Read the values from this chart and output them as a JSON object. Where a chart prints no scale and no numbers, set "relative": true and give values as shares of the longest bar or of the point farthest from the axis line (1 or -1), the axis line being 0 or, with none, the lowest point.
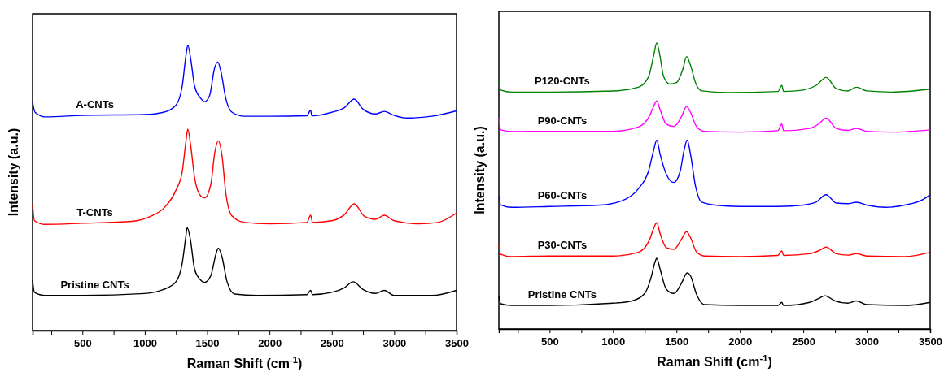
{
  "chart_data": [
    {
      "type": "line",
      "relative": true,
      "xlabel": "Raman Shift (cm$^{-1}$)",
      "ylabel": "Intensity (a.u.)",
      "tick_labels": "x",
      "xlim": [
        100,
        3500
      ],
      "xticks": [
        {
          "value": 250,
          "label": null
        },
        500,
        {
          "value": 750,
          "label": null
        },
        1000,
        {
          "value": 1250,
          "label": null
        },
        1500,
        {
          "value": 1750,
          "label": null
        },
        2000,
        {
          "value": 2250,
          "label": null
        },
        2500,
        {
          "value": 2750,
          "label": null
        },
        3000,
        {
          "value": 3250,
          "label": null
        },
        3500
      ],
      "series": [
        {
          "name": "A-CNTs",
          "color": "#0000ff",
          "x": [
            100,
            120,
            200,
            500,
            1000,
            1150,
            1250,
            1300,
            1330,
            1345,
            1370,
            1400,
            1450,
            1480,
            1520,
            1560,
            1585,
            1610,
            1650,
            1700,
            1800,
            2000,
            2300,
            2330,
            2340,
            2500,
            2600,
            2680,
            2750,
            2850,
            2920,
            3000,
            3100,
            3300,
            3500
          ],
          "values": [
            0.8,
            0.765,
            0.749,
            0.754,
            0.757,
            0.765,
            0.79,
            0.856,
            0.963,
            1.0,
            0.947,
            0.856,
            0.813,
            0.802,
            0.824,
            0.92,
            0.941,
            0.909,
            0.813,
            0.765,
            0.751,
            0.751,
            0.753,
            0.772,
            0.753,
            0.765,
            0.781,
            0.811,
            0.776,
            0.759,
            0.768,
            0.754,
            0.745,
            0.751,
            0.77
          ]
        },
        {
          "name": "T-CNTs",
          "color": "#ff0000",
          "x": [
            100,
            115,
            200,
            500,
            900,
            1050,
            1150,
            1250,
            1300,
            1330,
            1345,
            1370,
            1400,
            1450,
            1480,
            1530,
            1560,
            1590,
            1620,
            1650,
            1700,
            1800,
            2000,
            2300,
            2330,
            2345,
            2500,
            2600,
            2680,
            2760,
            2850,
            2920,
            3000,
            3200,
            3350,
            3500
          ],
          "values": [
            0.444,
            0.385,
            0.372,
            0.376,
            0.383,
            0.401,
            0.428,
            0.492,
            0.556,
            0.663,
            0.706,
            0.642,
            0.535,
            0.471,
            0.465,
            0.513,
            0.62,
            0.665,
            0.61,
            0.481,
            0.401,
            0.379,
            0.374,
            0.379,
            0.404,
            0.379,
            0.385,
            0.406,
            0.444,
            0.401,
            0.39,
            0.404,
            0.385,
            0.374,
            0.379,
            0.412
          ]
        },
        {
          "name": "Pristine CNTs",
          "color": "#000000",
          "x": [
            100,
            115,
            200,
            500,
            1000,
            1150,
            1250,
            1300,
            1330,
            1340,
            1365,
            1400,
            1450,
            1480,
            1530,
            1570,
            1590,
            1620,
            1660,
            1720,
            1900,
            2300,
            2330,
            2345,
            2500,
            2600,
            2670,
            2750,
            2850,
            2920,
            3000,
            3300,
            3500
          ],
          "values": [
            0.176,
            0.134,
            0.123,
            0.123,
            0.13,
            0.144,
            0.171,
            0.235,
            0.332,
            0.361,
            0.321,
            0.214,
            0.176,
            0.169,
            0.193,
            0.267,
            0.289,
            0.257,
            0.171,
            0.128,
            0.123,
            0.126,
            0.141,
            0.126,
            0.134,
            0.15,
            0.171,
            0.144,
            0.13,
            0.141,
            0.123,
            0.123,
            0.141
          ]
        }
      ]
    },
    {
      "type": "line",
      "relative": true,
      "xlabel": "Raman Shift (cm$^{-1}$)",
      "ylabel": "Intensity (a.u.)",
      "tick_labels": "x",
      "xlim": [
        100,
        3500
      ],
      "xticks": [
        {
          "value": 250,
          "label": null
        },
        500,
        {
          "value": 750,
          "label": null
        },
        1000,
        {
          "value": 1250,
          "label": null
        },
        1500,
        {
          "value": 1750,
          "label": null
        },
        2000,
        {
          "value": 2250,
          "label": null
        },
        2500,
        {
          "value": 2750,
          "label": null
        },
        3000,
        {
          "value": 3250,
          "label": null
        },
        3500
      ],
      "series": [
        {
          "name": "P120-CNTs",
          "color": "#008000",
          "x": [
            100,
            115,
            200,
            500,
            1000,
            1200,
            1280,
            1320,
            1345,
            1370,
            1400,
            1450,
            1500,
            1550,
            1580,
            1610,
            1650,
            1700,
            1900,
            2300,
            2330,
            2345,
            2500,
            2600,
            2680,
            2760,
            2850,
            2920,
            3000,
            3200,
            3500
          ],
          "values": [
            0.871,
            0.835,
            0.828,
            0.828,
            0.832,
            0.845,
            0.881,
            0.954,
            1.0,
            0.954,
            0.881,
            0.856,
            0.861,
            0.907,
            0.952,
            0.923,
            0.861,
            0.832,
            0.826,
            0.83,
            0.851,
            0.83,
            0.835,
            0.851,
            0.879,
            0.84,
            0.832,
            0.845,
            0.832,
            0.828,
            0.838
          ]
        },
        {
          "name": "P90-CNTs",
          "color": "#ff00ff",
          "x": [
            100,
            115,
            200,
            500,
            1000,
            1200,
            1290,
            1320,
            1345,
            1370,
            1420,
            1480,
            1540,
            1580,
            1610,
            1660,
            1720,
            2000,
            2300,
            2330,
            2345,
            2550,
            2620,
            2680,
            2760,
            2850,
            2920,
            3000,
            3200,
            3500
          ],
          "values": [
            0.739,
            0.696,
            0.69,
            0.691,
            0.691,
            0.706,
            0.747,
            0.778,
            0.797,
            0.768,
            0.716,
            0.708,
            0.742,
            0.778,
            0.758,
            0.706,
            0.691,
            0.688,
            0.693,
            0.716,
            0.693,
            0.701,
            0.716,
            0.737,
            0.701,
            0.694,
            0.701,
            0.691,
            0.688,
            0.696
          ]
        },
        {
          "name": "P60-CNTs",
          "color": "#0000ff",
          "x": [
            100,
            115,
            200,
            500,
            900,
            1100,
            1200,
            1280,
            1320,
            1345,
            1370,
            1420,
            1480,
            1530,
            1560,
            1585,
            1610,
            1650,
            1700,
            1800,
            2000,
            2300,
            2500,
            2600,
            2680,
            2760,
            2850,
            2920,
            3000,
            3150,
            3300,
            3450,
            3500
          ],
          "values": [
            0.464,
            0.433,
            0.425,
            0.428,
            0.433,
            0.454,
            0.49,
            0.552,
            0.624,
            0.66,
            0.613,
            0.541,
            0.512,
            0.552,
            0.624,
            0.66,
            0.613,
            0.5,
            0.443,
            0.433,
            0.428,
            0.428,
            0.433,
            0.443,
            0.469,
            0.44,
            0.438,
            0.443,
            0.433,
            0.425,
            0.433,
            0.454,
            0.469
          ]
        },
        {
          "name": "P30-CNTs",
          "color": "#ff0000",
          "x": [
            100,
            115,
            200,
            500,
            1000,
            1200,
            1290,
            1320,
            1345,
            1370,
            1420,
            1480,
            1540,
            1580,
            1610,
            1660,
            1720,
            2000,
            2300,
            2330,
            2345,
            2550,
            2620,
            2680,
            2760,
            2850,
            2920,
            3000,
            3300,
            3500
          ],
          "values": [
            0.294,
            0.261,
            0.253,
            0.255,
            0.255,
            0.268,
            0.314,
            0.351,
            0.371,
            0.335,
            0.284,
            0.278,
            0.314,
            0.34,
            0.32,
            0.268,
            0.255,
            0.253,
            0.257,
            0.273,
            0.257,
            0.263,
            0.273,
            0.286,
            0.263,
            0.258,
            0.263,
            0.255,
            0.253,
            0.268
          ]
        },
        {
          "name": "Pristine CNTs",
          "color": "#000000",
          "x": [
            100,
            115,
            200,
            500,
            1000,
            1150,
            1250,
            1300,
            1330,
            1345,
            1370,
            1420,
            1480,
            1540,
            1585,
            1610,
            1660,
            1720,
            2000,
            2300,
            2330,
            2345,
            2550,
            2620,
            2670,
            2750,
            2850,
            2920,
            3000,
            3300,
            3500
          ],
          "values": [
            0.113,
            0.088,
            0.082,
            0.082,
            0.09,
            0.098,
            0.124,
            0.18,
            0.232,
            0.247,
            0.211,
            0.139,
            0.124,
            0.16,
            0.196,
            0.186,
            0.119,
            0.085,
            0.082,
            0.082,
            0.093,
            0.082,
            0.093,
            0.106,
            0.116,
            0.098,
            0.09,
            0.098,
            0.085,
            0.082,
            0.093
          ]
        }
      ]
    }
  ]
}
